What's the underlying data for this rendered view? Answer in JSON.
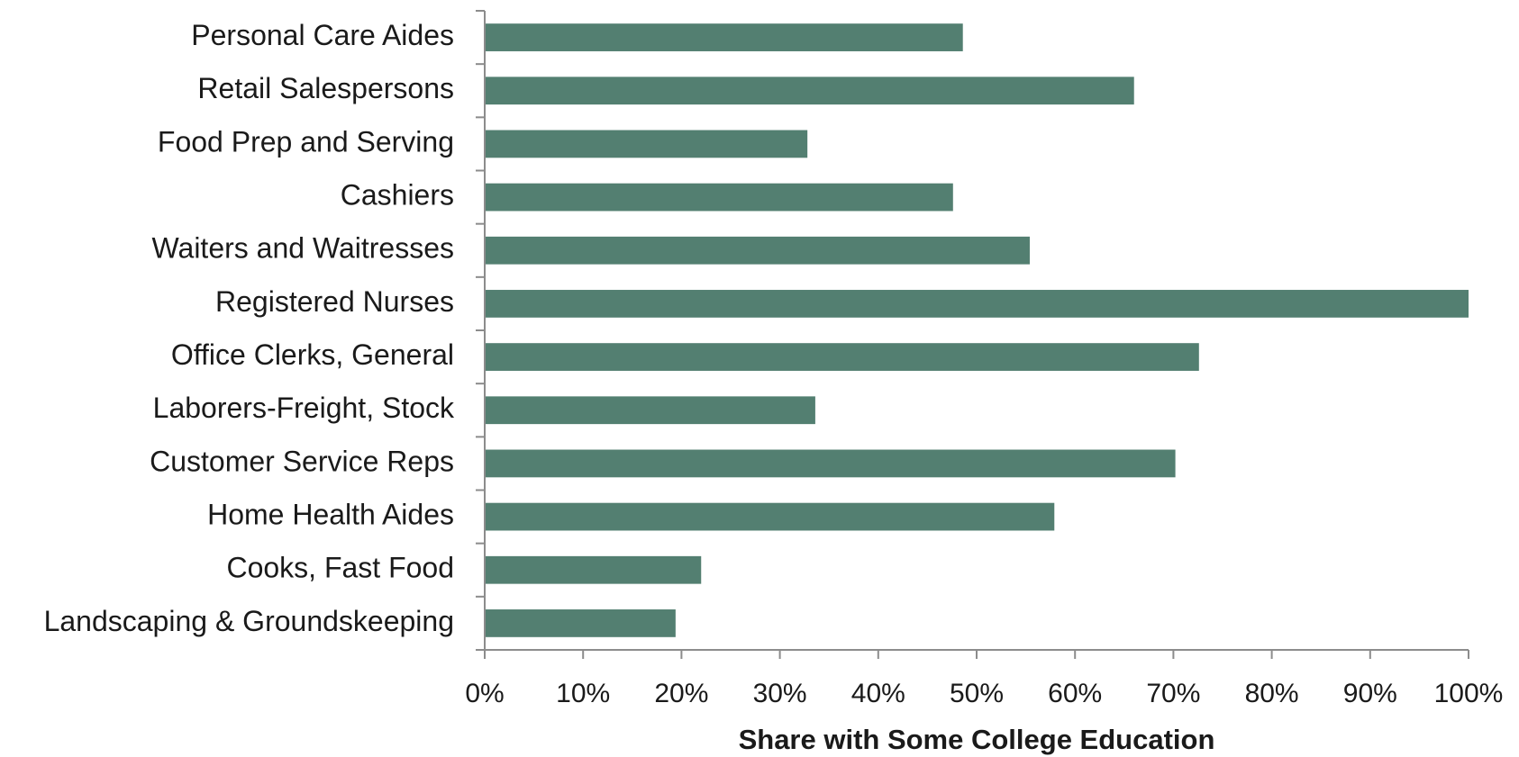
{
  "chart_data": {
    "type": "bar",
    "orientation": "horizontal",
    "categories": [
      "Personal Care Aides",
      "Retail Salespersons",
      "Food Prep and Serving",
      "Cashiers",
      "Waiters and Waitresses",
      "Registered Nurses",
      "Office Clerks, General",
      "Laborers-Freight, Stock",
      "Customer Service Reps",
      "Home Health Aides",
      "Cooks, Fast Food",
      "Landscaping & Groundskeeping"
    ],
    "values": [
      48.6,
      66.0,
      32.8,
      47.6,
      55.4,
      100.0,
      72.6,
      33.6,
      70.2,
      57.9,
      22.0,
      19.4
    ],
    "xlabel": "Share with Some College Education",
    "ylabel": "",
    "xlim": [
      0,
      100
    ],
    "xticks": [
      "0%",
      "10%",
      "20%",
      "30%",
      "40%",
      "50%",
      "60%",
      "70%",
      "80%",
      "90%",
      "100%"
    ],
    "grid": false,
    "legend": "none",
    "bar_color": "#537f71"
  }
}
